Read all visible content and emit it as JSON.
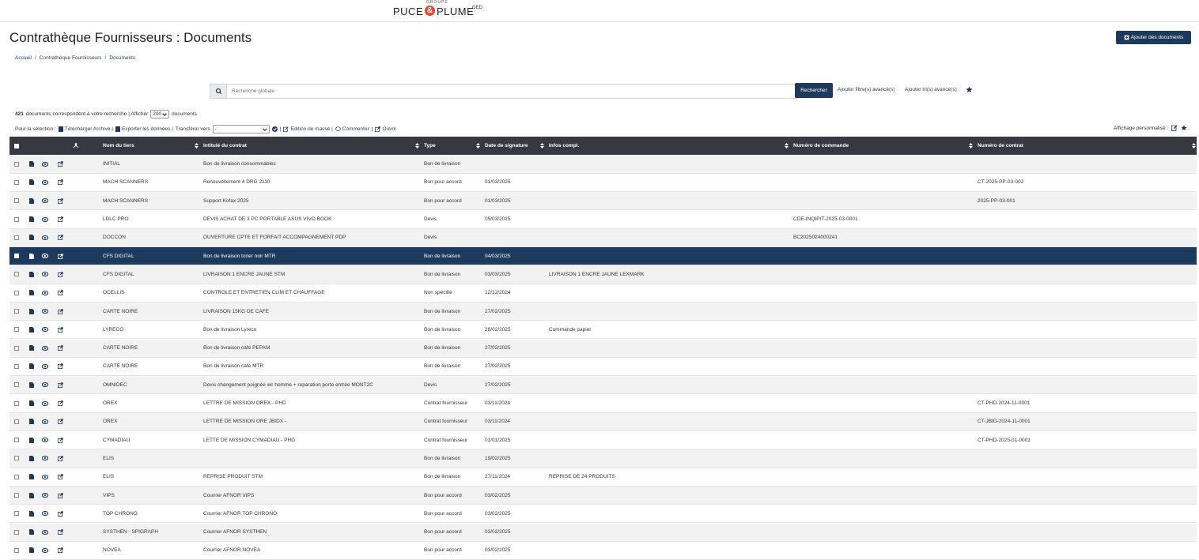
{
  "logo": {
    "group": "GROUPE",
    "brand": "PUCE",
    "ampersand": "&",
    "brand2": "PLUME",
    "product": "GED"
  },
  "header": {
    "title": "Contrathèque Fournisseurs : Documents",
    "add_button": "Ajouter des documents"
  },
  "breadcrumb": {
    "items": [
      "Accueil",
      "Contrathèque Fournisseurs",
      "Documents"
    ],
    "separator": "/"
  },
  "search": {
    "placeholder": "Recherche globale",
    "button": "Rechercher",
    "filters": "Ajouter filtre(s) avancé(s)",
    "sorts": "Ajouter tri(s) avancé(s)"
  },
  "results": {
    "count": "421",
    "text": "documents correspondent à votre recherche  |  Afficher",
    "page_size": "200",
    "suffix": "documents"
  },
  "actions": {
    "label": "Pour la sélection :",
    "download": "Télécharger Archive |",
    "export": "Exporter les données |",
    "transfer": "Transférer vers",
    "transfer_value": "-",
    "sep": "|",
    "mass_edit": "Edition de masse |",
    "comment": "Commenter",
    "sep2": "|",
    "open": "Ouvrir",
    "custom_view": "Affichage personnalisé :"
  },
  "table": {
    "columns": [
      "Nom du tiers",
      "Intitulé du contrat",
      "Type",
      "Date de signature",
      "Infos compl.",
      "Numéro de commande",
      "Numéro de contrat"
    ],
    "selected_row": 5,
    "rows": [
      [
        "INITIAL",
        "Bon de livraison consommables",
        "Bon de livraison",
        null,
        null,
        null,
        null
      ],
      [
        "MACH SCANNERS",
        "Renouvellement 4 DRG 2110",
        "Bon pour accord",
        "01/03/2025",
        null,
        null,
        "CT-2025-PP-03-002"
      ],
      [
        "MACH SCANNERS",
        "Support Kofax 2025",
        "Bon pour accord",
        "01/03/2025",
        null,
        null,
        "2025-PP-03-001"
      ],
      [
        "LDLC PRO",
        "DEVIS ACHAT DE 3 PC PORTABLE ASUS VIVO BOOK",
        "Devis",
        "05/03/2025",
        null,
        "CDE-INQIPIT-2025-03-0001",
        null
      ],
      [
        "DOCCON",
        "OUVERTURE CPTE ET FORFAIT ACCOMPAGNEMENT PDP",
        "Devis",
        null,
        null,
        "BC2025024000241",
        null
      ],
      [
        "CFS DIGITAL",
        "Bon de livraison toner noir MTR",
        "Bon de livraison",
        "04/03/2025",
        null,
        null,
        null
      ],
      [
        "CFS DIGITAL",
        "LIVRAISON 1 ENCRE JAUNE STM",
        "Bon de livraison",
        "03/03/2025",
        "LIVRAISON 1 ENCRE JAUNE LEXMARK",
        null,
        null
      ],
      [
        "OCELLIS",
        "CONTROLE ET ENTRETIEN CLIM ET CHAUFFAGE",
        "Non spécifié",
        "12/12/2024",
        null,
        null,
        null
      ],
      [
        "CARTE NOIRE",
        "LIVRAISON 15KG DE CAFE",
        "Bon de livraison",
        "27/02/2025",
        null,
        null,
        null
      ],
      [
        "LYRECO",
        "Bon de livraison Lyreco",
        "Bon de livraison",
        "28/02/2025",
        "Commande papier",
        null,
        null
      ],
      [
        "CARTE NOIRE",
        "Bon de livraison café PEPAM",
        "Bon de livraison",
        "27/02/2025",
        null,
        null,
        null
      ],
      [
        "CARTE NOIRE",
        "Bon de livraison café MTR",
        "Bon de livraison",
        "27/02/2025",
        null,
        null,
        null
      ],
      [
        "OMNIDEC",
        "Devis changement poignée wc homme + reparation porte entrée MONT2C",
        "Devis",
        "27/02/2025",
        null,
        null,
        null
      ],
      [
        "OREX",
        "LETTRE DE MISSION OREX - PHD",
        "Contrat fournisseur",
        "03/11/2024",
        null,
        null,
        "CT-PHD-2024-11-0001"
      ],
      [
        "OREX",
        "LETTRE DE MISSION ORE JBIDX -",
        "Contrat fournisseur",
        "03/11/2024",
        null,
        null,
        "CT-JBID-2024-11-0001"
      ],
      [
        "CYMADIAU",
        "LETTE DE MISSION CYMADIAU - PHD",
        "Contrat fournisseur",
        "01/01/2025",
        null,
        null,
        "CT-PHD-2025-01-0001"
      ],
      [
        "ELIS",
        null,
        "Bon de livraison",
        "19/02/2025",
        null,
        null,
        null
      ],
      [
        "ELIS",
        "REPRISE PRODUIT STM",
        "Bon de livraison",
        "27/11/2024",
        "REPRISE DE 24 PRODUITS",
        null,
        null
      ],
      [
        "VIPS",
        "Courrier AFNOR VIPS",
        "Bon pour accord",
        "03/02/2025",
        null,
        null,
        null
      ],
      [
        "TOP CHRONO",
        "Courrier AFNOR TOP CHRONO",
        "Bon pour accord",
        "03/02/2025",
        null,
        null,
        null
      ],
      [
        "SYSTHEN - SPIGRAPH",
        "Courrier AFNOR SYSTHEN",
        "Bon pour accord",
        "03/02/2025",
        null,
        null,
        null
      ],
      [
        "NOVEA",
        "Courrier AFNOR NOVEA",
        "Bon pour accord",
        "03/02/2025",
        null,
        null,
        null
      ]
    ]
  }
}
